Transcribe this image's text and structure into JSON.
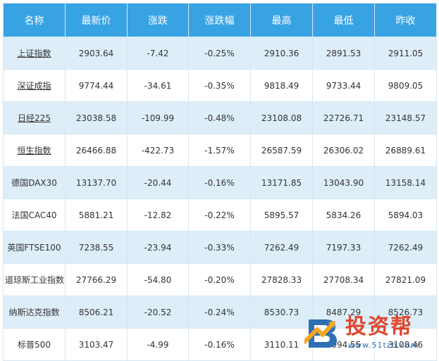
{
  "table": {
    "headers": [
      "名称",
      "最新价",
      "涨跌",
      "涨跌幅",
      "最高",
      "最低",
      "昨收"
    ],
    "rows": [
      {
        "name": "上证指数",
        "link": true,
        "values": [
          "2903.64",
          "-7.42",
          "-0.25%",
          "2910.36",
          "2891.53",
          "2911.05"
        ]
      },
      {
        "name": "深证成指",
        "link": true,
        "values": [
          "9774.44",
          "-34.61",
          "-0.35%",
          "9818.49",
          "9733.44",
          "9809.05"
        ]
      },
      {
        "name": "日经225",
        "link": true,
        "values": [
          "23038.58",
          "-109.99",
          "-0.48%",
          "23108.08",
          "22726.71",
          "23148.57"
        ]
      },
      {
        "name": "恒生指数",
        "link": true,
        "values": [
          "26466.88",
          "-422.73",
          "-1.57%",
          "26587.59",
          "26306.02",
          "26889.61"
        ]
      },
      {
        "name": "德国DAX30",
        "link": false,
        "values": [
          "13137.70",
          "-20.44",
          "-0.16%",
          "13171.85",
          "13043.90",
          "13158.14"
        ]
      },
      {
        "name": "法国CAC40",
        "link": false,
        "values": [
          "5881.21",
          "-12.82",
          "-0.22%",
          "5895.57",
          "5834.26",
          "5894.03"
        ]
      },
      {
        "name": "英国FTSE100",
        "link": false,
        "values": [
          "7238.55",
          "-23.94",
          "-0.33%",
          "7262.49",
          "7197.33",
          "7262.49"
        ]
      },
      {
        "name": "道琼斯工业指数",
        "link": false,
        "values": [
          "27766.29",
          "-54.80",
          "-0.20%",
          "27828.33",
          "27708.34",
          "27821.09"
        ]
      },
      {
        "name": "纳斯达克指数",
        "link": false,
        "values": [
          "8506.21",
          "-20.52",
          "-0.24%",
          "8530.73",
          "8487.29",
          "8526.73"
        ]
      },
      {
        "name": "标普500",
        "link": false,
        "values": [
          "3103.47",
          "-4.99",
          "-0.16%",
          "3110.11",
          "3094.55",
          "3108.46"
        ]
      }
    ]
  },
  "watermark": {
    "title": "投资帮",
    "url": "www.51tzb.com",
    "logo_icon": "tzb-logo-icon"
  },
  "colors": {
    "header_bg": "#38a3e3",
    "row_alt_bg": "#deeef9",
    "watermark_red": "#e0462c",
    "watermark_blue": "#2e6fb5"
  }
}
